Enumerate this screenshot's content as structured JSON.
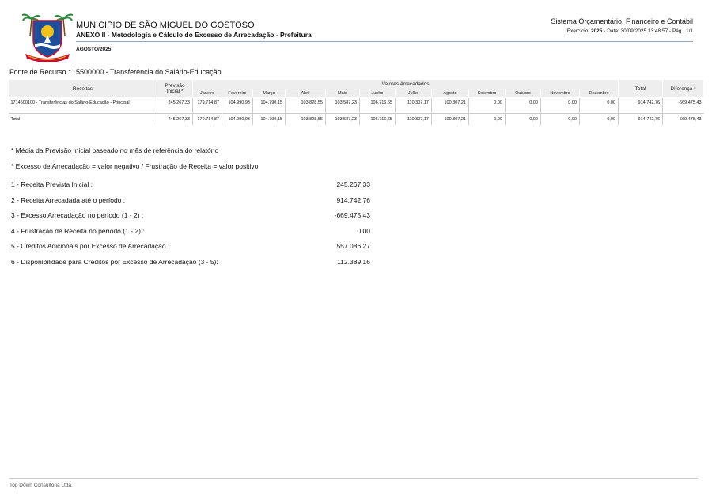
{
  "header": {
    "municipality": "MUNICIPIO DE SÃO MIGUEL DO GOSTOSO",
    "annex": "ANEXO II - Metodologia e Cálculo do Excesso de Arrecadação - Prefeitura",
    "period": "AGOSTO/2025",
    "system": "Sistema Orçamentário, Financeiro e Contábil",
    "exercise_label": "Exercício: ",
    "exercise_year": "2025",
    "date_info": " - Data: 30/09/2025 13:48:57 - ",
    "page": "Pág.: 1/1"
  },
  "fonte": "Fonte de Recurso : 15500000 - Transferência do Salário-Educação",
  "table": {
    "col_receitas": "Receitas",
    "col_previsao": "Previsão Inicial *",
    "col_valores": "Valores Arrecadados",
    "col_total": "Total",
    "col_diferenca": "Diferença *",
    "months": [
      "Janeiro",
      "Fevereiro",
      "Março",
      "Abril",
      "Maio",
      "Junho",
      "Julho",
      "Agosto",
      "Setembro",
      "Outubro",
      "Novembro",
      "Dezembro"
    ],
    "rows": [
      {
        "label": "1714500100 - Transferências do Salário-Educação - Principal",
        "previsao": "245.267,33",
        "values": [
          "179.714,87",
          "104.990,93",
          "104.790,15",
          "103.828,55",
          "103.587,23",
          "106.716,65",
          "110.307,17",
          "100.807,21",
          "0,00",
          "0,00",
          "0,00",
          "0,00"
        ],
        "total": "914.742,76",
        "diferenca": "-669.475,43"
      }
    ],
    "total_row": {
      "label": "Total",
      "previsao": "245.267,33",
      "values": [
        "179.714,87",
        "104.990,93",
        "104.790,15",
        "103.828,55",
        "103.587,23",
        "106.716,65",
        "110.307,17",
        "100.807,21",
        "0,00",
        "0,00",
        "0,00",
        "0,00"
      ],
      "total": "914.742,76",
      "diferenca": "-669.475,43"
    }
  },
  "notes": [
    "* Média da Previsão Inicial baseado no mês de referência do relatório",
    "* Excesso de Arrecadação = valor negativo / Frustração de Receita = valor positivo"
  ],
  "summary": [
    {
      "label": "1 - Receita Prevista Inicial :",
      "value": "245.267,33"
    },
    {
      "label": "2 - Receita Arrecadada até o período :",
      "value": "914.742,76"
    },
    {
      "label": "3 - Excesso Arrecadação no período (1 - 2) :",
      "value": "-669.475,43"
    },
    {
      "label": "4 - Frustração de Receita no período (1 - 2) :",
      "value": "0,00"
    },
    {
      "label": "5 - Créditos Adicionais por Excesso de Arrecadação :",
      "value": "557.086,27"
    },
    {
      "label": "6 - Disponibilidade para Créditos por Excesso de Arrecadação (3 - 5):",
      "value": "112.389,16"
    }
  ],
  "footer": "Top Down Consultoria Ltda.",
  "colors": {
    "header_bg": "#eeeeee",
    "rule": "#9aa5b8",
    "crest_blue": "#1f4e9a",
    "crest_yellow": "#f2c21b"
  }
}
